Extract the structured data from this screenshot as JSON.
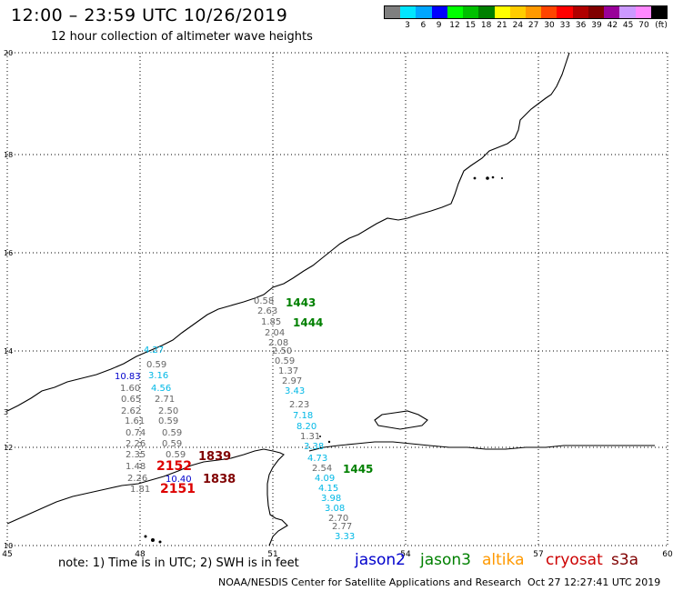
{
  "header": {
    "title": "12:00 – 23:59 UTC 10/26/2019",
    "subtitle": "12 hour collection of altimeter wave heights"
  },
  "legend": {
    "colors": [
      "#7f7f7f",
      "#00e5ff",
      "#00a6ff",
      "#0000ff",
      "#00ff00",
      "#00c000",
      "#008000",
      "#ffff00",
      "#ffcc00",
      "#ff9900",
      "#ff4400",
      "#ff0000",
      "#b00000",
      "#800000",
      "#990099",
      "#cc99ff",
      "#ff88ff",
      "#000000"
    ],
    "labels": [
      "3",
      "6",
      "9",
      "12",
      "15",
      "18",
      "21",
      "24",
      "27",
      "30",
      "33",
      "36",
      "39",
      "42",
      "45",
      "70"
    ],
    "unit": "(ft)"
  },
  "axes": {
    "lon_labels": [
      "45",
      "48",
      "51",
      "54",
      "57",
      "60"
    ],
    "lat_labels": [
      "20",
      "18",
      "16",
      "14",
      "12",
      "10"
    ]
  },
  "colors": {
    "gray": "#666666",
    "cyan": "#00b8e6",
    "blue": "#0000cc",
    "green": "#008000",
    "darkred": "#800000",
    "red": "#dd0000"
  },
  "observations": [
    {
      "v": "0.58",
      "c": "gray"
    },
    {
      "v": "2.63",
      "c": "gray"
    },
    {
      "v": "1.85",
      "c": "gray"
    },
    {
      "v": "2.04",
      "c": "gray"
    },
    {
      "v": "2.08",
      "c": "gray"
    },
    {
      "v": "2.50",
      "c": "gray"
    },
    {
      "v": "0.59",
      "c": "gray"
    },
    {
      "v": "1.37",
      "c": "gray"
    },
    {
      "v": "2.97",
      "c": "gray"
    },
    {
      "v": "3.43",
      "c": "cyan"
    },
    {
      "v": "2.23",
      "c": "gray"
    },
    {
      "v": "7.18",
      "c": "cyan"
    },
    {
      "v": "8.20",
      "c": "cyan"
    },
    {
      "v": "1.31",
      "c": "gray"
    },
    {
      "v": "3.38",
      "c": "cyan"
    },
    {
      "v": "4.73",
      "c": "cyan"
    },
    {
      "v": "2.54",
      "c": "gray"
    },
    {
      "v": "4.09",
      "c": "cyan"
    },
    {
      "v": "4.15",
      "c": "cyan"
    },
    {
      "v": "3.98",
      "c": "cyan"
    },
    {
      "v": "3.08",
      "c": "cyan"
    },
    {
      "v": "2.70",
      "c": "gray"
    },
    {
      "v": "2.77",
      "c": "gray"
    },
    {
      "v": "3.33",
      "c": "cyan"
    },
    {
      "v": "4.27",
      "c": "cyan"
    },
    {
      "v": "0.59",
      "c": "gray"
    },
    {
      "v": "10.83",
      "c": "blue"
    },
    {
      "v": "3.16",
      "c": "cyan"
    },
    {
      "v": "1.60",
      "c": "gray"
    },
    {
      "v": "4.56",
      "c": "cyan"
    },
    {
      "v": "0.65",
      "c": "gray"
    },
    {
      "v": "2.71",
      "c": "gray"
    },
    {
      "v": "2.62",
      "c": "gray"
    },
    {
      "v": "2.50",
      "c": "gray"
    },
    {
      "v": "1.61",
      "c": "gray"
    },
    {
      "v": "0.59",
      "c": "gray"
    },
    {
      "v": "0.74",
      "c": "gray"
    },
    {
      "v": "0.59",
      "c": "gray"
    },
    {
      "v": "2.26",
      "c": "gray"
    },
    {
      "v": "0.59",
      "c": "gray"
    },
    {
      "v": "2.35",
      "c": "gray"
    },
    {
      "v": "0.59",
      "c": "gray"
    },
    {
      "v": "1.48",
      "c": "gray"
    },
    {
      "v": "2.26",
      "c": "gray"
    },
    {
      "v": "10.40",
      "c": "blue"
    },
    {
      "v": "1.81",
      "c": "gray"
    }
  ],
  "times": [
    {
      "v": "1443",
      "c": "green"
    },
    {
      "v": "1444",
      "c": "green"
    },
    {
      "v": "1445",
      "c": "green"
    },
    {
      "v": "1839",
      "c": "darkred"
    },
    {
      "v": "1838",
      "c": "darkred"
    },
    {
      "v": "2152",
      "c": "red"
    },
    {
      "v": "2151",
      "c": "red"
    }
  ],
  "footer": {
    "note": "note: 1) Time is in UTC; 2) SWH is in feet",
    "satellites": [
      {
        "name": "jason2",
        "color": "#0000cc"
      },
      {
        "name": "jason3",
        "color": "#008000"
      },
      {
        "name": "altika",
        "color": "#ff9900"
      },
      {
        "name": "cryosat",
        "color": "#cc0000"
      },
      {
        "name": "s3a",
        "color": "#800000"
      }
    ],
    "credit": "NOAA/NESDIS Center for Satellite Applications and Research",
    "timestamp": "Oct 27 12:27:41 UTC 2019"
  }
}
